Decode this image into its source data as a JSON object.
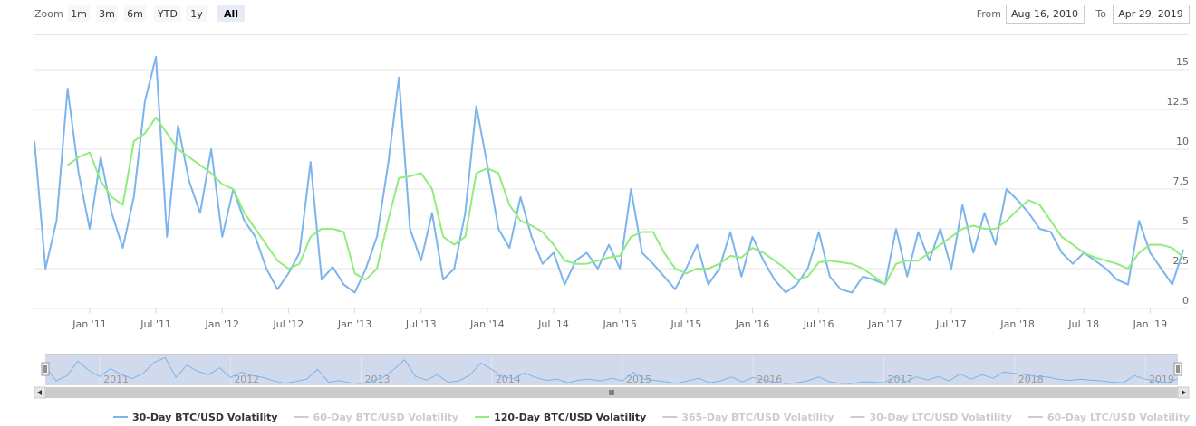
{
  "chart_data": {
    "type": "line",
    "range_selector": {
      "label": "Zoom",
      "buttons": [
        "1m",
        "3m",
        "6m",
        "YTD",
        "1y",
        "All"
      ],
      "selected": 5,
      "from_label": "From",
      "from": "Aug 16, 2010",
      "to_label": "To",
      "to": "Apr 29, 2019"
    },
    "x": [
      "2010-08",
      "2010-09",
      "2010-10",
      "2010-11",
      "2010-12",
      "2011-01",
      "2011-02",
      "2011-03",
      "2011-04",
      "2011-05",
      "2011-06",
      "2011-07",
      "2011-08",
      "2011-09",
      "2011-10",
      "2011-11",
      "2011-12",
      "2012-01",
      "2012-02",
      "2012-03",
      "2012-04",
      "2012-05",
      "2012-06",
      "2012-07",
      "2012-08",
      "2012-09",
      "2012-10",
      "2012-11",
      "2012-12",
      "2013-01",
      "2013-02",
      "2013-03",
      "2013-04",
      "2013-05",
      "2013-06",
      "2013-07",
      "2013-08",
      "2013-09",
      "2013-10",
      "2013-11",
      "2013-12",
      "2014-01",
      "2014-02",
      "2014-03",
      "2014-04",
      "2014-05",
      "2014-06",
      "2014-07",
      "2014-08",
      "2014-09",
      "2014-10",
      "2014-11",
      "2014-12",
      "2015-01",
      "2015-02",
      "2015-03",
      "2015-04",
      "2015-05",
      "2015-06",
      "2015-07",
      "2015-08",
      "2015-09",
      "2015-10",
      "2015-11",
      "2015-12",
      "2016-01",
      "2016-02",
      "2016-03",
      "2016-04",
      "2016-05",
      "2016-06",
      "2016-07",
      "2016-08",
      "2016-09",
      "2016-10",
      "2016-11",
      "2016-12",
      "2017-01",
      "2017-02",
      "2017-03",
      "2017-04",
      "2017-05",
      "2017-06",
      "2017-07",
      "2017-08",
      "2017-09",
      "2017-10",
      "2017-11",
      "2017-12",
      "2018-01",
      "2018-02",
      "2018-03",
      "2018-04",
      "2018-05",
      "2018-06",
      "2018-07",
      "2018-08",
      "2018-09",
      "2018-10",
      "2018-11",
      "2018-12",
      "2019-01",
      "2019-02",
      "2019-03",
      "2019-04"
    ],
    "xlim": [
      "2010-08",
      "2019-04"
    ],
    "xticks": [
      {
        "value": "2011-01",
        "label": "Jan '11"
      },
      {
        "value": "2011-07",
        "label": "Jul '11"
      },
      {
        "value": "2012-01",
        "label": "Jan '12"
      },
      {
        "value": "2012-07",
        "label": "Jul '12"
      },
      {
        "value": "2013-01",
        "label": "Jan '13"
      },
      {
        "value": "2013-07",
        "label": "Jul '13"
      },
      {
        "value": "2014-01",
        "label": "Jan '14"
      },
      {
        "value": "2014-07",
        "label": "Jul '14"
      },
      {
        "value": "2015-01",
        "label": "Jan '15"
      },
      {
        "value": "2015-07",
        "label": "Jul '15"
      },
      {
        "value": "2016-01",
        "label": "Jan '16"
      },
      {
        "value": "2016-07",
        "label": "Jul '16"
      },
      {
        "value": "2017-01",
        "label": "Jan '17"
      },
      {
        "value": "2017-07",
        "label": "Jul '17"
      },
      {
        "value": "2018-01",
        "label": "Jan '18"
      },
      {
        "value": "2018-07",
        "label": "Jul '18"
      },
      {
        "value": "2019-01",
        "label": "Jan '19"
      }
    ],
    "navigator_xticks": [
      {
        "value": "2011-01",
        "label": "2011"
      },
      {
        "value": "2012-01",
        "label": "2012"
      },
      {
        "value": "2013-01",
        "label": "2013"
      },
      {
        "value": "2014-01",
        "label": "2014"
      },
      {
        "value": "2015-01",
        "label": "2015"
      },
      {
        "value": "2016-01",
        "label": "2016"
      },
      {
        "value": "2017-01",
        "label": "2017"
      },
      {
        "value": "2018-01",
        "label": "2018"
      },
      {
        "value": "2019-01",
        "label": "2019"
      }
    ],
    "ylim": [
      0,
      17.5
    ],
    "yticks": [
      0,
      2.5,
      5,
      7.5,
      10,
      12.5,
      15
    ],
    "grid": true,
    "series": [
      {
        "name": "30-Day BTC/USD Volatility",
        "color": "#7cb5ec",
        "visible": true,
        "values": [
          10.5,
          2.5,
          5.5,
          13.8,
          8.5,
          5,
          9.5,
          6,
          3.8,
          7,
          13,
          15.8,
          4.5,
          11.5,
          8,
          6,
          10,
          4.5,
          7.5,
          5.5,
          4.5,
          2.5,
          1.2,
          2.2,
          3.5,
          9.2,
          1.8,
          2.6,
          1.5,
          1,
          2.5,
          4.5,
          9,
          14.5,
          5,
          3,
          6,
          1.8,
          2.5,
          6,
          12.7,
          9,
          5,
          3.8,
          7,
          4.5,
          2.8,
          3.5,
          1.5,
          3,
          3.5,
          2.5,
          4,
          2.5,
          7.5,
          3.5,
          2.8,
          2,
          1.2,
          2.5,
          4,
          1.5,
          2.5,
          4.8,
          2,
          4.5,
          3,
          1.8,
          1,
          1.5,
          2.5,
          4.8,
          2,
          1.2,
          1,
          2,
          1.8,
          1.5,
          5,
          2,
          4.8,
          3,
          5,
          2.5,
          6.5,
          3.5,
          6,
          4,
          7.5,
          6.8,
          6,
          5,
          4.8,
          3.5,
          2.8,
          3.5,
          3,
          2.5,
          1.8,
          1.5,
          5.5,
          3.5,
          2.5,
          1.5,
          3.7
        ]
      },
      {
        "name": "60-Day BTC/USD Volatility",
        "visible": false
      },
      {
        "name": "120-Day BTC/USD Volatility",
        "color": "#90ed7d",
        "visible": true,
        "values": [
          null,
          null,
          null,
          9,
          9.5,
          9.8,
          8,
          7,
          6.5,
          10.5,
          11,
          12,
          11,
          10,
          9.5,
          9,
          8.5,
          7.8,
          7.5,
          6,
          5,
          4,
          3,
          2.5,
          2.8,
          4.5,
          5,
          5,
          4.8,
          2.2,
          1.8,
          2.5,
          5.5,
          8.2,
          8.3,
          8.5,
          7.5,
          4.5,
          4,
          4.5,
          8.5,
          8.8,
          8.5,
          6.5,
          5.5,
          5.2,
          4.8,
          4,
          3,
          2.8,
          2.8,
          3,
          3.2,
          3.3,
          4.5,
          4.8,
          4.8,
          3.5,
          2.5,
          2.2,
          2.5,
          2.5,
          2.8,
          3.3,
          3.2,
          3.8,
          3.5,
          3,
          2.5,
          1.8,
          2,
          2.9,
          3,
          2.9,
          2.8,
          2.5,
          2,
          1.5,
          2.8,
          3,
          3,
          3.5,
          4,
          4.5,
          5,
          5.2,
          5,
          5,
          5.5,
          6.2,
          6.8,
          6.5,
          5.5,
          4.5,
          4,
          3.5,
          3.2,
          3,
          2.8,
          2.5,
          3.5,
          4,
          4,
          3.8,
          3.2
        ]
      },
      {
        "name": "365-Day BTC/USD Volatility",
        "visible": false
      },
      {
        "name": "30-Day LTC/USD Volatility",
        "visible": false
      },
      {
        "name": "60-Day LTC/USD Volatility",
        "visible": false
      }
    ]
  }
}
